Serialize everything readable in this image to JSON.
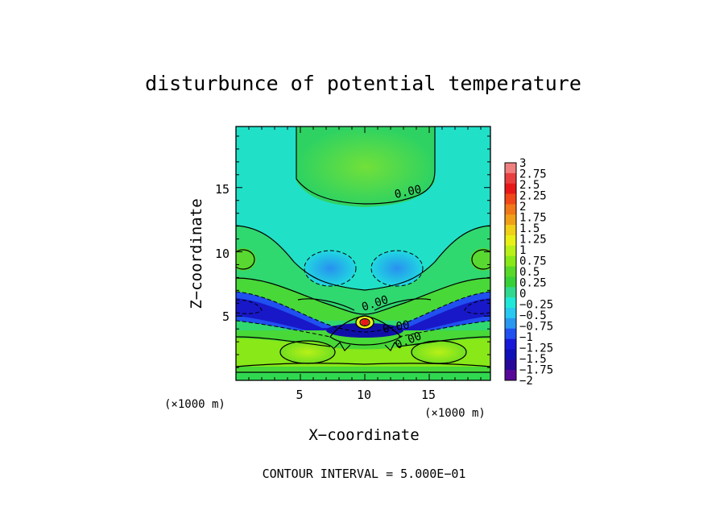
{
  "chart_data": {
    "type": "heatmap",
    "title": "disturbunce of potential temperature",
    "xlabel": "X−coordinate",
    "ylabel": "Z−coordinate",
    "x_unit": "(×1000 m)",
    "z_unit": "(×1000 m)",
    "xlim": [
      0,
      19.75
    ],
    "ylim": [
      0,
      19.75
    ],
    "x_ticks": [
      "5",
      "10",
      "15"
    ],
    "y_ticks": [
      "5",
      "10",
      "15"
    ],
    "contour_interval_text": "CONTOUR INTERVAL = 5.000E−01",
    "contour_labels": [
      "0.00",
      "0.00",
      "0.00",
      "0.00"
    ],
    "colorbar": {
      "range": [
        -2,
        3
      ],
      "labels": [
        "3",
        "2.75",
        "2.5",
        "2.25",
        "2",
        "1.75",
        "1.5",
        "1.25",
        "1",
        "0.75",
        "0.5",
        "0.25",
        "0",
        "−0.25",
        "−0.5",
        "−0.75",
        "−1",
        "−1.25",
        "−1.5",
        "−1.75",
        "−2"
      ],
      "colors": [
        "#f08080",
        "#e84040",
        "#e81818",
        "#f04818",
        "#f07818",
        "#f0a018",
        "#f0d018",
        "#e8f018",
        "#b8f018",
        "#88e818",
        "#58d828",
        "#38d038",
        "#30d890",
        "#20e8d8",
        "#28c8f0",
        "#2898f0",
        "#2050f0",
        "#1818d8",
        "#1010b8",
        "#280898",
        "#580898"
      ]
    }
  }
}
